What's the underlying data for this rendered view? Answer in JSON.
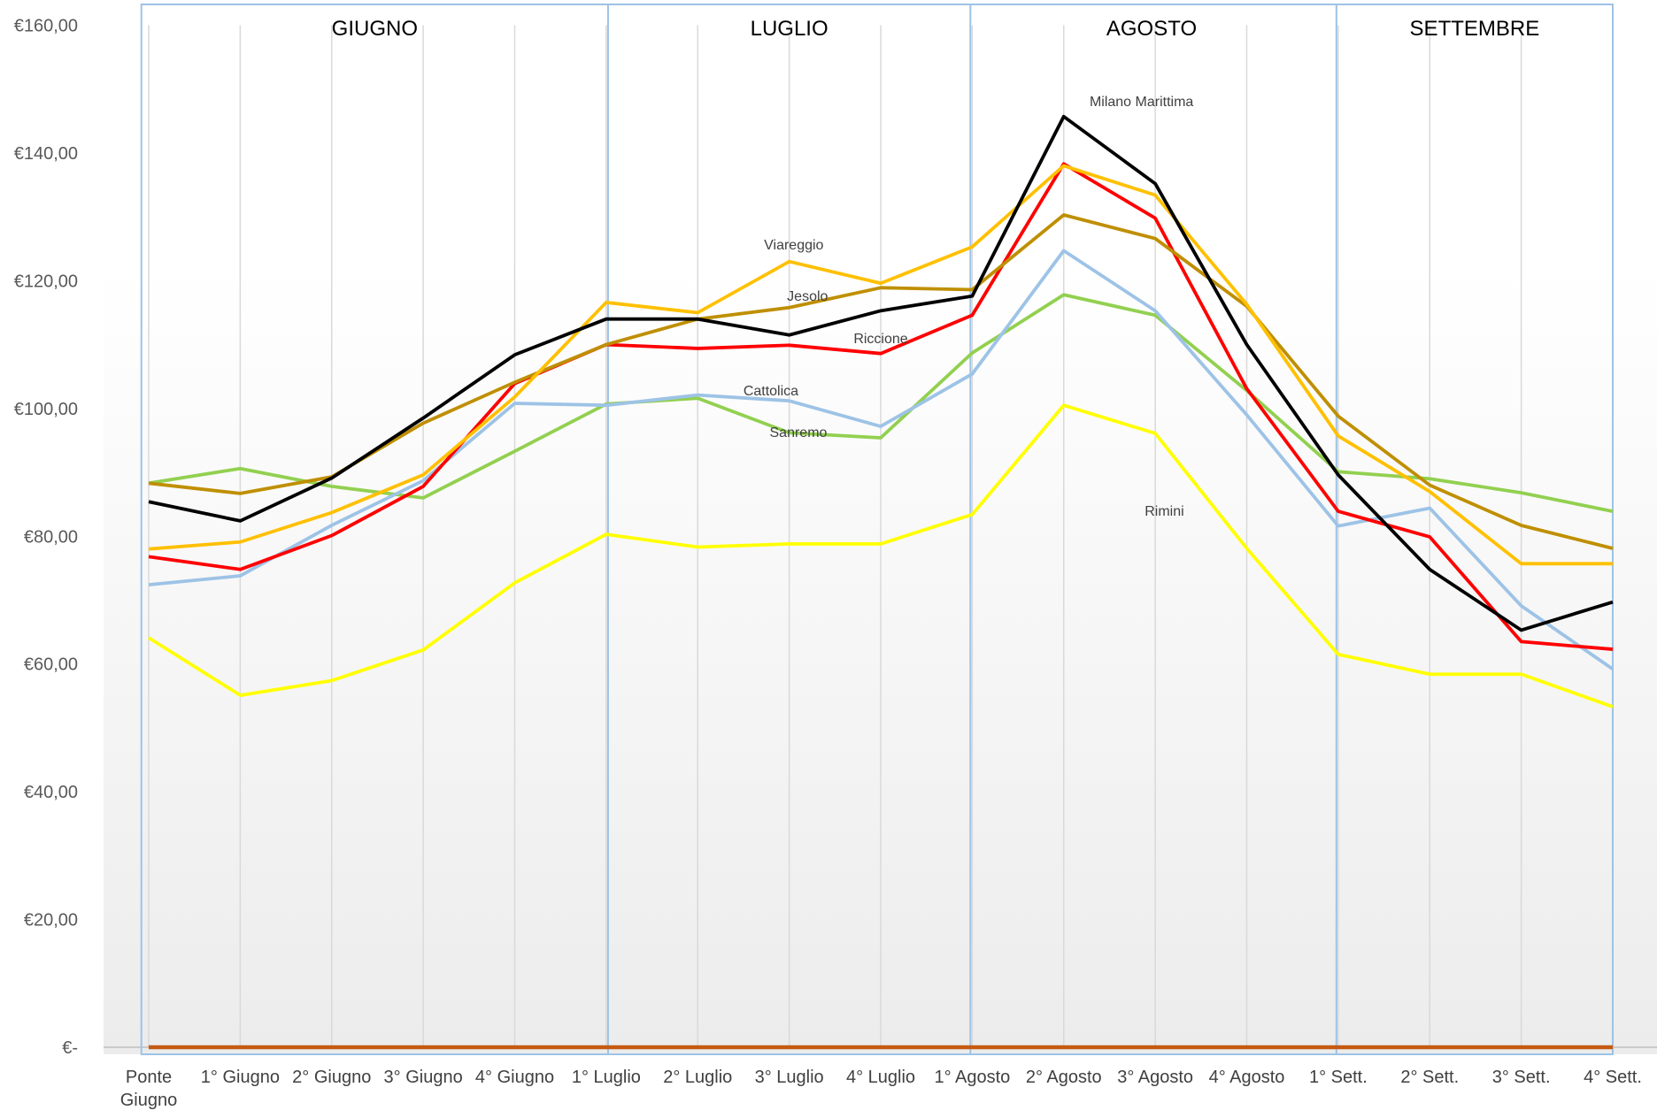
{
  "chart_data": {
    "type": "line",
    "months": [
      "GIUGNO",
      "LUGLIO",
      "AGOSTO",
      "SETTEMBRE"
    ],
    "categories": [
      "Ponte Giugno",
      "1° Giugno",
      "2° Giugno",
      "3° Giugno",
      "4° Giugno",
      "1° Luglio",
      "2° Luglio",
      "3° Luglio",
      "4° Luglio",
      "1° Agosto",
      "2° Agosto",
      "3° Agosto",
      "4° Agosto",
      "1° Sett.",
      "2° Sett.",
      "3° Sett.",
      "4° Sett."
    ],
    "ylim": [
      0,
      160
    ],
    "yticks": [
      {
        "value": 0,
        "label": "€-"
      },
      {
        "value": 20,
        "label": "€20,00"
      },
      {
        "value": 40,
        "label": "€40,00"
      },
      {
        "value": 60,
        "label": "€60,00"
      },
      {
        "value": 80,
        "label": "€80,00"
      },
      {
        "value": 100,
        "label": "€100,00"
      },
      {
        "value": 120,
        "label": "€120,00"
      },
      {
        "value": 140,
        "label": "€140,00"
      },
      {
        "value": 160,
        "label": "€160,00"
      }
    ],
    "series": [
      {
        "color": "#c55a11",
        "values": [
          0,
          0,
          0,
          0,
          0,
          0,
          0,
          0,
          0,
          0,
          0,
          0,
          0,
          0,
          0,
          0,
          0
        ]
      },
      {
        "name": "Rimini",
        "color": "#ffff00",
        "values": [
          64.1,
          55.1,
          57.4,
          62.2,
          72.7,
          80.3,
          78.3,
          78.8,
          78.8,
          83.4,
          100.5,
          96.1,
          78.1,
          61.5,
          58.4,
          58.4,
          53.3
        ]
      },
      {
        "name": "Sanremo",
        "color": "#92d050",
        "values": [
          88.3,
          90.6,
          87.8,
          86,
          93.3,
          100.7,
          101.6,
          96.2,
          95.4,
          108.7,
          117.8,
          114.6,
          102.8,
          90.1,
          89,
          86.8,
          83.9
        ]
      },
      {
        "name": "Cattolica",
        "color": "#9dc3e6",
        "values": [
          72.4,
          73.8,
          81.7,
          88.7,
          100.8,
          100.5,
          102.1,
          101.2,
          97.2,
          105.4,
          124.7,
          115.3,
          99,
          81.6,
          84.4,
          69.1,
          59.2
        ]
      },
      {
        "name": "Riccione",
        "color": "#ff0000",
        "values": [
          76.8,
          74.8,
          80.1,
          87.8,
          103.9,
          110,
          109.4,
          109.9,
          108.6,
          114.6,
          138.3,
          129.8,
          103.1,
          83.9,
          79.9,
          63.5,
          62.3
        ]
      },
      {
        "name": "Jesolo",
        "color": "#bf8f00",
        "values": [
          88.3,
          86.7,
          89.3,
          97.7,
          104.1,
          110,
          114,
          115.8,
          118.9,
          118.6,
          130.3,
          126.6,
          116,
          98.8,
          88,
          81.7,
          78.1
        ]
      },
      {
        "name": "Viareggio",
        "color": "#ffc000",
        "values": [
          78,
          79.1,
          83.7,
          89.6,
          101.8,
          116.6,
          115,
          123,
          119.6,
          125.3,
          138,
          133.4,
          116.3,
          95.7,
          87,
          75.7,
          75.7
        ]
      },
      {
        "name": "Milano Marittima",
        "color": "#000000",
        "values": [
          85.4,
          82.4,
          89.1,
          98.5,
          108.4,
          114,
          114,
          111.5,
          115.3,
          117.6,
          145.7,
          135.2,
          110,
          89.6,
          74.8,
          65.3,
          69.7
        ]
      }
    ]
  }
}
